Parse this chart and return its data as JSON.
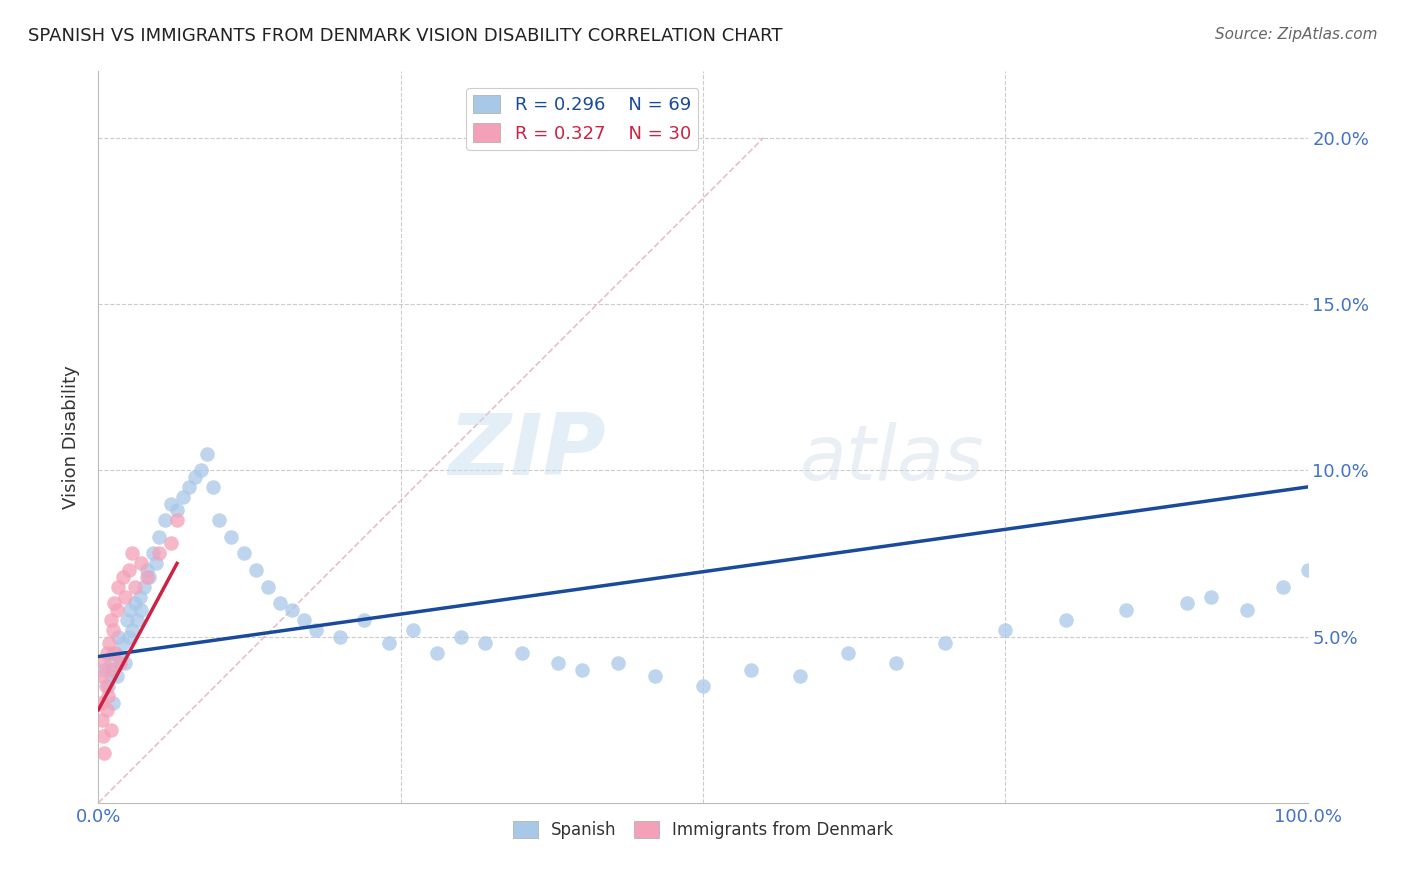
{
  "title": "SPANISH VS IMMIGRANTS FROM DENMARK VISION DISABILITY CORRELATION CHART",
  "source": "Source: ZipAtlas.com",
  "label_color": "#4472c4",
  "ylabel": "Vision Disability",
  "xlim": [
    0.0,
    1.0
  ],
  "ylim": [
    0.0,
    0.22
  ],
  "xtick_positions": [
    0.0,
    0.25,
    0.5,
    0.75,
    1.0
  ],
  "xtick_labels": [
    "0.0%",
    "",
    "",
    "",
    "100.0%"
  ],
  "ytick_positions": [
    0.0,
    0.05,
    0.1,
    0.15,
    0.2
  ],
  "ytick_labels": [
    "",
    "5.0%",
    "10.0%",
    "15.0%",
    "20.0%"
  ],
  "legend_R1": "R = 0.296",
  "legend_N1": "N = 69",
  "legend_R2": "R = 0.327",
  "legend_N2": "N = 30",
  "color_spanish": "#a8c8e8",
  "color_denmark": "#f4a0b8",
  "color_line_spanish": "#1a4a9a",
  "color_line_denmark": "#cc2244",
  "color_diagonal": "#e0b0b8",
  "watermark_zip": "ZIP",
  "watermark_atlas": "atlas",
  "spanish_x": [
    0.005,
    0.008,
    0.01,
    0.01,
    0.012,
    0.013,
    0.015,
    0.016,
    0.018,
    0.02,
    0.022,
    0.024,
    0.025,
    0.026,
    0.028,
    0.03,
    0.032,
    0.034,
    0.035,
    0.038,
    0.04,
    0.042,
    0.045,
    0.048,
    0.05,
    0.055,
    0.06,
    0.065,
    0.07,
    0.075,
    0.08,
    0.085,
    0.09,
    0.095,
    0.1,
    0.11,
    0.12,
    0.13,
    0.14,
    0.15,
    0.16,
    0.17,
    0.18,
    0.2,
    0.22,
    0.24,
    0.26,
    0.28,
    0.3,
    0.32,
    0.35,
    0.38,
    0.4,
    0.43,
    0.46,
    0.5,
    0.54,
    0.58,
    0.62,
    0.66,
    0.7,
    0.75,
    0.8,
    0.85,
    0.9,
    0.92,
    0.95,
    0.98,
    1.0
  ],
  "spanish_y": [
    0.04,
    0.035,
    0.038,
    0.042,
    0.03,
    0.045,
    0.038,
    0.05,
    0.044,
    0.048,
    0.042,
    0.055,
    0.05,
    0.058,
    0.052,
    0.06,
    0.055,
    0.062,
    0.058,
    0.065,
    0.07,
    0.068,
    0.075,
    0.072,
    0.08,
    0.085,
    0.09,
    0.088,
    0.092,
    0.095,
    0.098,
    0.1,
    0.105,
    0.095,
    0.085,
    0.08,
    0.075,
    0.07,
    0.065,
    0.06,
    0.058,
    0.055,
    0.052,
    0.05,
    0.055,
    0.048,
    0.052,
    0.045,
    0.05,
    0.048,
    0.045,
    0.042,
    0.04,
    0.042,
    0.038,
    0.035,
    0.04,
    0.038,
    0.045,
    0.042,
    0.048,
    0.052,
    0.055,
    0.058,
    0.06,
    0.062,
    0.058,
    0.065,
    0.07
  ],
  "denmark_x": [
    0.002,
    0.003,
    0.003,
    0.004,
    0.005,
    0.005,
    0.006,
    0.007,
    0.007,
    0.008,
    0.009,
    0.01,
    0.01,
    0.011,
    0.012,
    0.013,
    0.014,
    0.015,
    0.016,
    0.018,
    0.02,
    0.022,
    0.025,
    0.028,
    0.03,
    0.035,
    0.04,
    0.05,
    0.06,
    0.065
  ],
  "denmark_y": [
    0.03,
    0.025,
    0.038,
    0.02,
    0.042,
    0.015,
    0.035,
    0.028,
    0.045,
    0.032,
    0.048,
    0.022,
    0.055,
    0.04,
    0.052,
    0.06,
    0.045,
    0.058,
    0.065,
    0.042,
    0.068,
    0.062,
    0.07,
    0.075,
    0.065,
    0.072,
    0.068,
    0.075,
    0.078,
    0.085
  ],
  "blue_line_x0": 0.0,
  "blue_line_y0": 0.044,
  "blue_line_x1": 1.0,
  "blue_line_y1": 0.095,
  "pink_line_x0": 0.0,
  "pink_line_y0": 0.028,
  "pink_line_x1": 0.065,
  "pink_line_y1": 0.072
}
